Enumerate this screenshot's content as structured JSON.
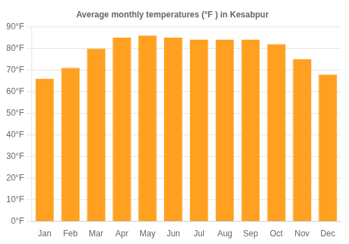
{
  "chart_data": {
    "type": "bar",
    "title": "Average monthly temperatures (°F ) in Kesabpur",
    "categories": [
      "Jan",
      "Feb",
      "Mar",
      "Apr",
      "May",
      "Jun",
      "Jul",
      "Aug",
      "Sep",
      "Oct",
      "Nov",
      "Dec"
    ],
    "values": [
      66,
      71,
      80,
      85,
      86,
      85,
      84,
      84,
      84,
      82,
      75,
      68
    ],
    "color": "#FFA020",
    "ylim": [
      0,
      90
    ],
    "yticks": [
      {
        "value": 0,
        "label": "0°F"
      },
      {
        "value": 10,
        "label": "10°F"
      },
      {
        "value": 20,
        "label": "20°F"
      },
      {
        "value": 30,
        "label": "30°F"
      },
      {
        "value": 40,
        "label": "40°F"
      },
      {
        "value": 50,
        "label": "50°F"
      },
      {
        "value": 60,
        "label": "60°F"
      },
      {
        "value": 70,
        "label": "70°F"
      },
      {
        "value": 80,
        "label": "80°F"
      },
      {
        "value": 90,
        "label": "90°F"
      }
    ],
    "grid": true
  }
}
